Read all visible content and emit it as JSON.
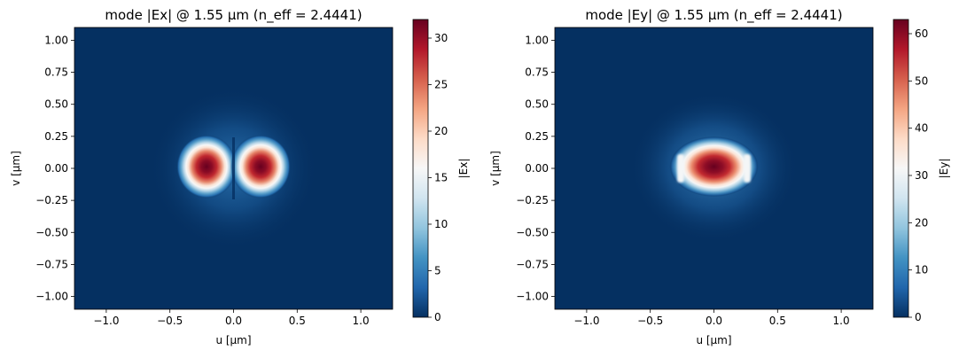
{
  "chart_data": [
    {
      "type": "heatmap",
      "title": "mode |Ex| @ 1.55 µm  (n_eff = 2.4441)",
      "xlabel": "u [µm]",
      "ylabel": "v [µm]",
      "colorbar_label": "|Ex|",
      "colormap": "RdBu_r",
      "xlim": [
        -1.25,
        1.25
      ],
      "ylim": [
        -1.1,
        1.1
      ],
      "clim": [
        0,
        32
      ],
      "xticks": [
        -1.0,
        -0.5,
        0.0,
        0.5,
        1.0
      ],
      "xtick_labels": [
        "−1.0",
        "−0.5",
        "0.0",
        "0.5",
        "1.0"
      ],
      "yticks": [
        1.0,
        0.75,
        0.5,
        0.25,
        0.0,
        -0.25,
        -0.5,
        -0.75,
        -1.0
      ],
      "ytick_labels": [
        "1.00",
        "0.75",
        "0.50",
        "0.25",
        "0.00",
        "−0.25",
        "−0.50",
        "−0.75",
        "−1.00"
      ],
      "cticks": [
        0,
        5,
        10,
        15,
        20,
        25,
        30
      ],
      "ctick_labels": [
        "0",
        "5",
        "10",
        "15",
        "20",
        "25",
        "30"
      ],
      "peaks": [
        {
          "u": -0.21,
          "v": 0.0,
          "value": 32
        },
        {
          "u": 0.21,
          "v": 0.0,
          "value": 32
        }
      ]
    },
    {
      "type": "heatmap",
      "title": "mode |Ey| @ 1.55 µm  (n_eff = 2.4441)",
      "xlabel": "u [µm]",
      "ylabel": "v [µm]",
      "colorbar_label": "|Ey|",
      "colormap": "RdBu_r",
      "xlim": [
        -1.25,
        1.25
      ],
      "ylim": [
        -1.1,
        1.1
      ],
      "clim": [
        0,
        63
      ],
      "xticks": [
        -1.0,
        -0.5,
        0.0,
        0.5,
        1.0
      ],
      "xtick_labels": [
        "−1.0",
        "−0.5",
        "0.0",
        "0.5",
        "1.0"
      ],
      "yticks": [
        1.0,
        0.75,
        0.5,
        0.25,
        0.0,
        -0.25,
        -0.5,
        -0.75,
        -1.0
      ],
      "ytick_labels": [
        "1.00",
        "0.75",
        "0.50",
        "0.25",
        "0.00",
        "−0.25",
        "−0.50",
        "−0.75",
        "−1.00"
      ],
      "cticks": [
        0,
        10,
        20,
        30,
        40,
        50,
        60
      ],
      "ctick_labels": [
        "0",
        "10",
        "20",
        "30",
        "40",
        "50",
        "60"
      ],
      "peaks": [
        {
          "u": 0.0,
          "v": 0.0,
          "value": 63
        }
      ]
    }
  ]
}
